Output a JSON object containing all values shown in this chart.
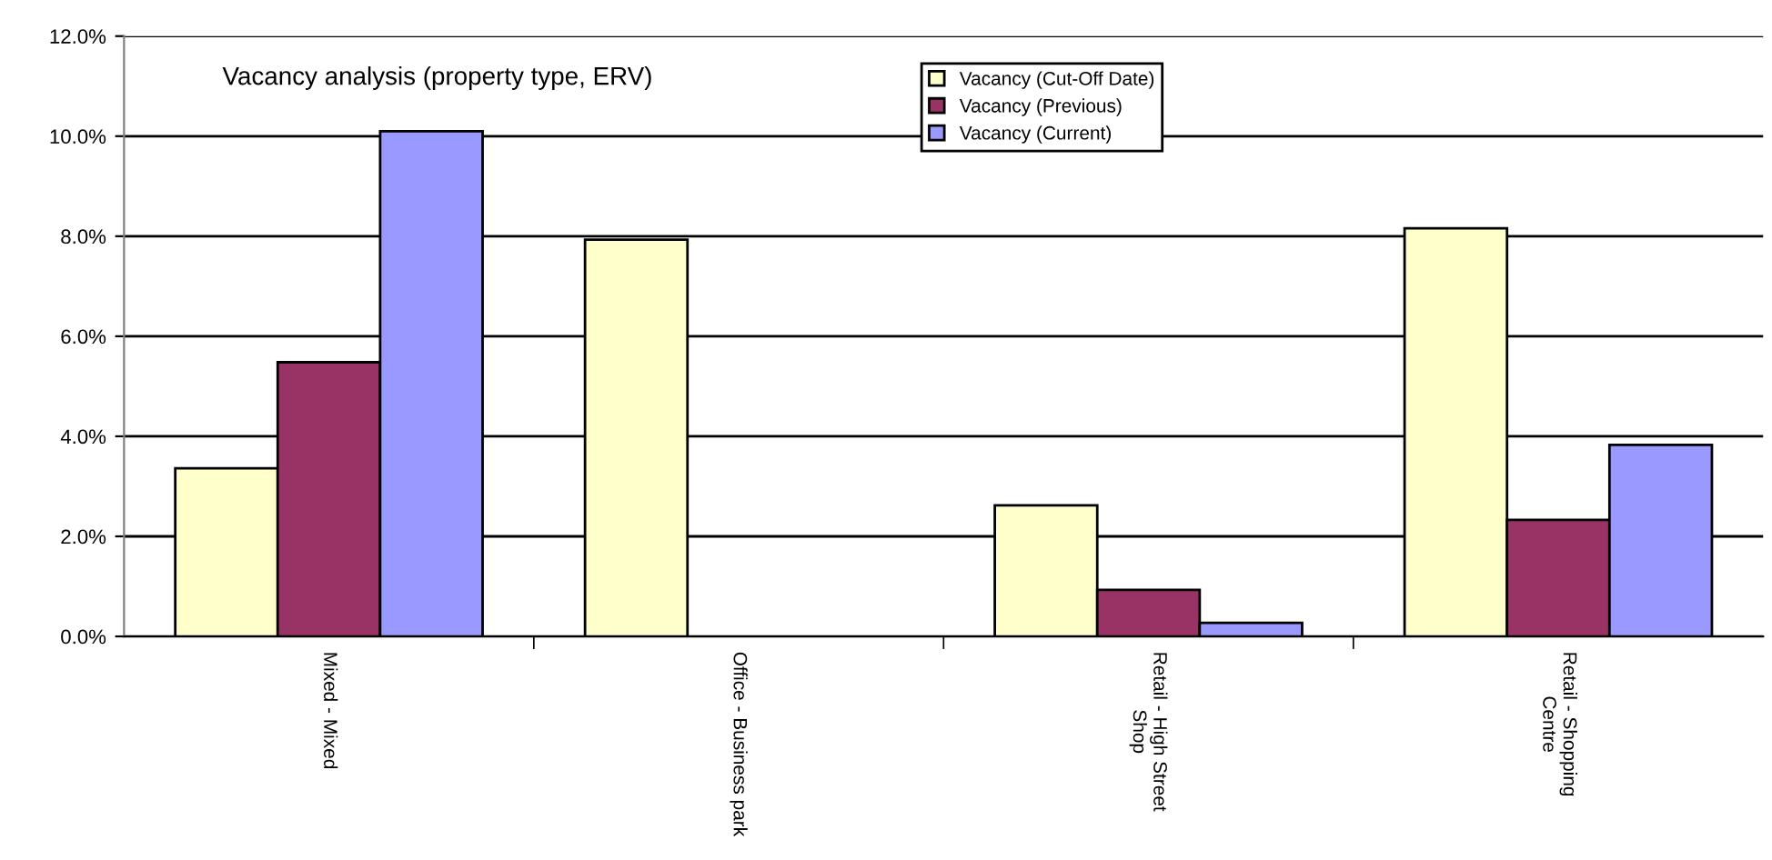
{
  "chart_data": {
    "type": "bar",
    "title": "Vacancy analysis (property type, ERV)",
    "categories": [
      "Mixed - Mixed",
      "Office - Business park",
      "Retail - High Street\nShop",
      "Retail - Shopping\nCentre"
    ],
    "series": [
      {
        "name": "Vacancy (Cut-Off Date)",
        "color": "#ffffcc",
        "values": [
          3.36,
          7.93,
          2.62,
          8.16
        ]
      },
      {
        "name": "Vacancy (Previous)",
        "color": "#993366",
        "values": [
          5.48,
          null,
          0.93,
          2.33
        ]
      },
      {
        "name": "Vacancy (Current)",
        "color": "#9999ff",
        "values": [
          10.1,
          null,
          0.27,
          3.83
        ]
      }
    ],
    "ylim": [
      0,
      12
    ],
    "yticks": [
      {
        "value": 0,
        "label": "0.0%"
      },
      {
        "value": 2,
        "label": "2.0%"
      },
      {
        "value": 4,
        "label": "4.0%"
      },
      {
        "value": 6,
        "label": "6.0%"
      },
      {
        "value": 8,
        "label": "8.0%"
      },
      {
        "value": 10,
        "label": "10.0%"
      },
      {
        "value": 12,
        "label": "12.0%"
      }
    ],
    "grid": "y",
    "legend": "top"
  }
}
